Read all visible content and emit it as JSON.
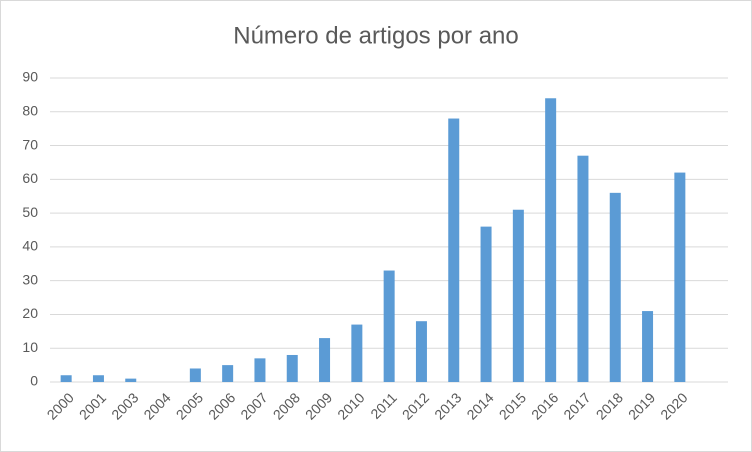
{
  "chart_data": {
    "type": "bar",
    "title": "Número de artigos por ano",
    "categories": [
      "2000",
      "2001",
      "2003",
      "2004",
      "2005",
      "2006",
      "2007",
      "2008",
      "2009",
      "2010",
      "2011",
      "2012",
      "2013",
      "2014",
      "2015",
      "2016",
      "2017",
      "2018",
      "2019",
      "2020"
    ],
    "values": [
      2,
      2,
      1,
      0,
      4,
      5,
      7,
      8,
      13,
      17,
      33,
      18,
      78,
      46,
      51,
      84,
      67,
      56,
      21,
      62
    ],
    "color": "#5b9bd5",
    "ylim": [
      0,
      90
    ],
    "yticks": [
      0,
      10,
      20,
      30,
      40,
      50,
      60,
      70,
      80,
      90
    ],
    "grid": true
  }
}
